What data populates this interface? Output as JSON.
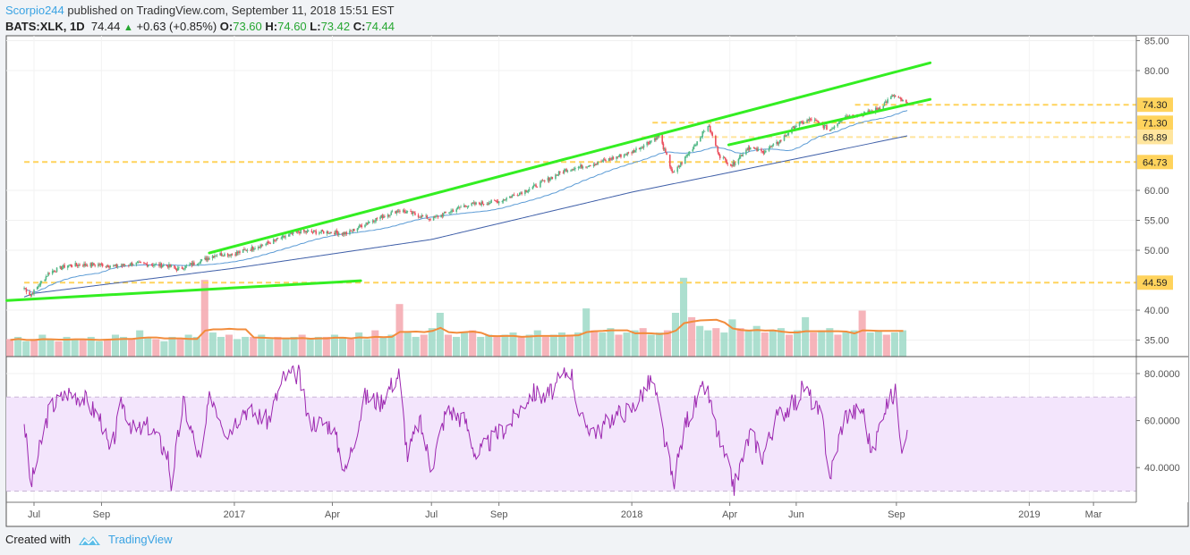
{
  "header": {
    "author": "Scorpio244",
    "published": "published on TradingView.com, September 11, 2018 15:51 EST",
    "symbol": "BATS:XLK, 1D",
    "last": "74.44",
    "change": "+0.63 (+0.85%)",
    "o_label": "O:",
    "open": "73.60",
    "h_label": "H:",
    "high": "74.60",
    "l_label": "L:",
    "low": "73.42",
    "c_label": "C:",
    "close": "74.44"
  },
  "footer": {
    "created_with": "Created with",
    "brand": "TradingView"
  },
  "colors": {
    "up": "#53b987",
    "down": "#eb4d5c",
    "trendline": "#33ee22",
    "level": "#ffd35c",
    "rsi": "#9c27b0",
    "rsi_band": "#f3e5fc",
    "ma_fast": "#5b9bd5",
    "ma_slow": "#3f5fa8",
    "vol_ma": "#f28c3c",
    "author": "#3aa3e3"
  },
  "chart_data": {
    "type": "candlestick",
    "price_axis": {
      "ticks": [
        "85.00",
        "80.00",
        "60.00",
        "55.00",
        "50.00",
        "40.00",
        "35.00"
      ],
      "tick_values": [
        85,
        80,
        60,
        55,
        50,
        40,
        35
      ],
      "range": [
        35,
        85
      ]
    },
    "rsi_axis": {
      "ticks": [
        "80.0000",
        "60.0000",
        "40.0000"
      ],
      "tick_values": [
        80,
        60,
        40
      ],
      "band": [
        30,
        70
      ]
    },
    "time_axis": {
      "ticks": [
        {
          "label": "Jul",
          "date": "2016-07-01"
        },
        {
          "label": "Sep",
          "date": "2016-09-01"
        },
        {
          "label": "2017",
          "date": "2017-01-01"
        },
        {
          "label": "Apr",
          "date": "2017-04-01"
        },
        {
          "label": "Jul",
          "date": "2017-07-01"
        },
        {
          "label": "Sep",
          "date": "2017-09-01"
        },
        {
          "label": "2018",
          "date": "2018-01-01"
        },
        {
          "label": "Apr",
          "date": "2018-04-01"
        },
        {
          "label": "Jun",
          "date": "2018-06-01"
        },
        {
          "label": "Sep",
          "date": "2018-09-01"
        },
        {
          "label": "2019",
          "date": "2019-01-01"
        },
        {
          "label": "Mar",
          "date": "2019-03-01"
        }
      ]
    },
    "grid": true,
    "close_series": [
      [
        "2016-06-22",
        43.7
      ],
      [
        "2016-06-28",
        42.5
      ],
      [
        "2016-07-15",
        46.3
      ],
      [
        "2016-08-01",
        47.5
      ],
      [
        "2016-09-01",
        47.6
      ],
      [
        "2016-09-15",
        47.3
      ],
      [
        "2016-10-01",
        47.8
      ],
      [
        "2016-11-01",
        47.4
      ],
      [
        "2016-11-10",
        46.8
      ],
      [
        "2016-12-01",
        48.2
      ],
      [
        "2016-12-15",
        49.3
      ],
      [
        "2017-01-01",
        49.4
      ],
      [
        "2017-02-01",
        51.2
      ],
      [
        "2017-03-01",
        53.1
      ],
      [
        "2017-04-01",
        53.0
      ],
      [
        "2017-04-15",
        52.8
      ],
      [
        "2017-05-01",
        54.5
      ],
      [
        "2017-06-01",
        56.7
      ],
      [
        "2017-06-15",
        56.0
      ],
      [
        "2017-07-01",
        55.2
      ],
      [
        "2017-08-01",
        57.5
      ],
      [
        "2017-09-01",
        58.2
      ],
      [
        "2017-10-01",
        60.4
      ],
      [
        "2017-11-01",
        63.4
      ],
      [
        "2017-12-01",
        64.6
      ],
      [
        "2018-01-01",
        66.4
      ],
      [
        "2018-01-26",
        69.1
      ],
      [
        "2018-02-08",
        62.7
      ],
      [
        "2018-03-01",
        67.9
      ],
      [
        "2018-03-12",
        70.9
      ],
      [
        "2018-03-23",
        65.7
      ],
      [
        "2018-04-03",
        64.2
      ],
      [
        "2018-04-18",
        67.2
      ],
      [
        "2018-05-01",
        66.4
      ],
      [
        "2018-05-15",
        67.9
      ],
      [
        "2018-06-01",
        70.9
      ],
      [
        "2018-06-15",
        71.9
      ],
      [
        "2018-07-02",
        70.1
      ],
      [
        "2018-07-15",
        72.4
      ],
      [
        "2018-08-01",
        72.7
      ],
      [
        "2018-08-15",
        73.6
      ],
      [
        "2018-08-29",
        75.8
      ],
      [
        "2018-09-11",
        74.44
      ]
    ],
    "ma_slow": [
      [
        "2016-06-22",
        42.2
      ],
      [
        "2016-07-01",
        42.8
      ],
      [
        "2017-01-01",
        47.0
      ],
      [
        "2017-07-01",
        51.8
      ],
      [
        "2018-01-01",
        59.7
      ],
      [
        "2018-04-01",
        63.0
      ],
      [
        "2018-09-11",
        69.1
      ]
    ],
    "rsi": [
      [
        "2016-06-22",
        60
      ],
      [
        "2016-06-28",
        32
      ],
      [
        "2016-07-15",
        65
      ],
      [
        "2016-08-01",
        72
      ],
      [
        "2016-08-15",
        70
      ],
      [
        "2016-09-01",
        60
      ],
      [
        "2016-09-09",
        45
      ],
      [
        "2016-09-20",
        68
      ],
      [
        "2016-10-01",
        55
      ],
      [
        "2016-10-15",
        58
      ],
      [
        "2016-11-01",
        45
      ],
      [
        "2016-11-04",
        33
      ],
      [
        "2016-11-15",
        68
      ],
      [
        "2016-12-01",
        42
      ],
      [
        "2016-12-10",
        72
      ],
      [
        "2016-12-25",
        55
      ],
      [
        "2017-01-10",
        65
      ],
      [
        "2017-02-01",
        60
      ],
      [
        "2017-02-15",
        78
      ],
      [
        "2017-03-01",
        80
      ],
      [
        "2017-03-10",
        60
      ],
      [
        "2017-04-01",
        58
      ],
      [
        "2017-04-13",
        38
      ],
      [
        "2017-05-01",
        70
      ],
      [
        "2017-05-15",
        68
      ],
      [
        "2017-06-01",
        80
      ],
      [
        "2017-06-09",
        45
      ],
      [
        "2017-06-20",
        60
      ],
      [
        "2017-07-01",
        40
      ],
      [
        "2017-07-15",
        65
      ],
      [
        "2017-08-01",
        60
      ],
      [
        "2017-08-11",
        45
      ],
      [
        "2017-09-01",
        55
      ],
      [
        "2017-09-10",
        58
      ],
      [
        "2017-10-01",
        72
      ],
      [
        "2017-10-15",
        70
      ],
      [
        "2017-11-01",
        80
      ],
      [
        "2017-11-05",
        84
      ],
      [
        "2017-11-15",
        60
      ],
      [
        "2017-12-01",
        55
      ],
      [
        "2017-12-15",
        62
      ],
      [
        "2018-01-01",
        65
      ],
      [
        "2018-01-20",
        78
      ],
      [
        "2018-02-08",
        33
      ],
      [
        "2018-02-20",
        60
      ],
      [
        "2018-03-10",
        75
      ],
      [
        "2018-03-23",
        50
      ],
      [
        "2018-04-05",
        32
      ],
      [
        "2018-04-20",
        55
      ],
      [
        "2018-05-01",
        45
      ],
      [
        "2018-05-15",
        62
      ],
      [
        "2018-06-01",
        68
      ],
      [
        "2018-06-08",
        75
      ],
      [
        "2018-06-25",
        60
      ],
      [
        "2018-07-02",
        36
      ],
      [
        "2018-07-15",
        62
      ],
      [
        "2018-08-01",
        65
      ],
      [
        "2018-08-10",
        45
      ],
      [
        "2018-08-20",
        65
      ],
      [
        "2018-08-31",
        72
      ],
      [
        "2018-09-06",
        50
      ],
      [
        "2018-09-11",
        56
      ]
    ],
    "volume_millions": [
      8,
      9,
      7,
      8,
      10,
      8,
      7,
      9,
      8,
      8,
      9,
      7,
      8,
      10,
      9,
      8,
      12,
      9,
      8,
      7,
      9,
      8,
      10,
      9,
      35,
      11,
      9,
      10,
      8,
      9,
      9,
      10,
      8,
      9,
      8,
      9,
      10,
      8,
      9,
      9,
      10,
      9,
      8,
      11,
      8,
      12,
      9,
      10,
      24,
      11,
      9,
      10,
      13,
      20,
      10,
      9,
      11,
      12,
      9,
      10,
      9,
      10,
      11,
      9,
      10,
      12,
      9,
      10,
      11,
      10,
      11,
      22,
      12,
      11,
      13,
      10,
      11,
      12,
      13,
      10,
      11,
      12,
      20,
      36,
      18,
      14,
      12,
      13,
      11,
      17,
      13,
      12,
      14,
      11,
      12,
      13,
      10,
      12,
      18,
      11,
      12,
      13,
      10,
      11,
      12,
      21,
      11,
      12,
      10,
      11,
      12
    ],
    "trendlines": [
      {
        "from": [
          "2016-12-09",
          49.55
        ],
        "to": [
          "2018-10-02",
          81.3
        ]
      },
      {
        "from": [
          "2018-03-31",
          67.6
        ],
        "to": [
          "2018-10-02",
          75.2
        ]
      },
      {
        "from": [
          "2016-06-06",
          41.6
        ],
        "to": [
          "2017-04-27",
          44.9
        ]
      }
    ],
    "levels": [
      {
        "value": 74.3,
        "label": "74.30",
        "from": "2018-07-25"
      },
      {
        "value": 71.3,
        "label": "71.30",
        "from": "2018-01-20"
      },
      {
        "value": 68.89,
        "label": "68.89",
        "from": "2018-01-10",
        "faded": true
      },
      {
        "value": 64.73,
        "label": "64.73",
        "from": "2016-06-22"
      },
      {
        "value": 44.59,
        "label": "44.59",
        "from": "2016-06-22"
      }
    ]
  }
}
